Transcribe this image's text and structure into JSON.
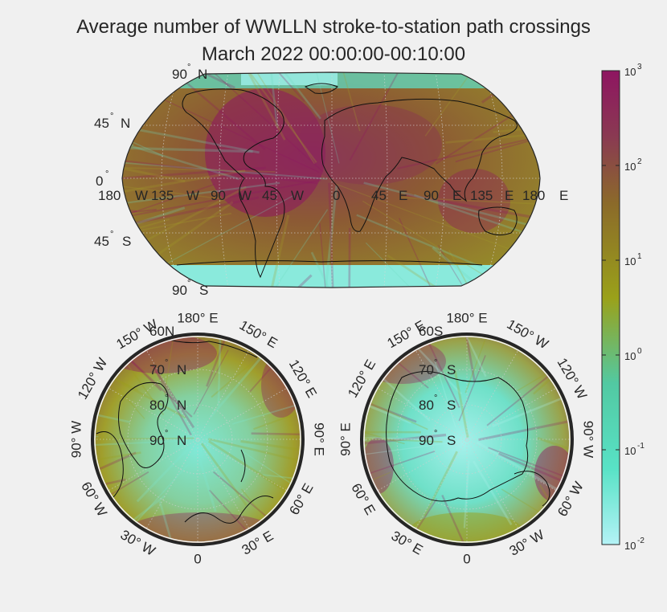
{
  "title": {
    "line1": "Average number of WWLLN stroke-to-station path crossings",
    "line2": "March 2022 00:00:00-00:10:00"
  },
  "colors": {
    "background": "#f0f0f0",
    "low": "#a8f2ee",
    "mid": "#9aa11a",
    "mid2": "#8b6a2a",
    "high": "#8e1561",
    "coast": "#111111",
    "rim": "#262626"
  },
  "world_map": {
    "projection": "robinson",
    "lat_labels": [
      {
        "deg": "90",
        "dir": "N"
      },
      {
        "deg": "45",
        "dir": "N"
      },
      {
        "deg": "0",
        "dir": ""
      },
      {
        "deg": "45",
        "dir": "S"
      },
      {
        "deg": "90",
        "dir": "S"
      }
    ],
    "lon_labels": [
      {
        "deg": "180",
        "dir": "W"
      },
      {
        "deg": "135",
        "dir": "W"
      },
      {
        "deg": "90",
        "dir": "W"
      },
      {
        "deg": "45",
        "dir": "W"
      },
      {
        "deg": "0",
        "dir": ""
      },
      {
        "deg": "45",
        "dir": "E"
      },
      {
        "deg": "90",
        "dir": "E"
      },
      {
        "deg": "135",
        "dir": "E"
      },
      {
        "deg": "180",
        "dir": "E"
      }
    ]
  },
  "north_polar": {
    "pole": "north",
    "lat_rings": [
      {
        "deg": "60",
        "dir": "N"
      },
      {
        "deg": "70",
        "dir": "N"
      },
      {
        "deg": "80",
        "dir": "N"
      },
      {
        "deg": "90",
        "dir": "N"
      }
    ],
    "rim_labels": [
      {
        "deg": "180",
        "dir": "E"
      },
      {
        "deg": "150",
        "dir": "E"
      },
      {
        "deg": "120",
        "dir": "E"
      },
      {
        "deg": "90",
        "dir": "E"
      },
      {
        "deg": "60",
        "dir": "E"
      },
      {
        "deg": "30",
        "dir": "E"
      },
      {
        "deg": "0",
        "dir": ""
      },
      {
        "deg": "30",
        "dir": "W"
      },
      {
        "deg": "60",
        "dir": "W"
      },
      {
        "deg": "90",
        "dir": "W"
      },
      {
        "deg": "120",
        "dir": "W"
      },
      {
        "deg": "150",
        "dir": "W"
      }
    ]
  },
  "south_polar": {
    "pole": "south",
    "lat_rings": [
      {
        "deg": "60",
        "dir": "S"
      },
      {
        "deg": "70",
        "dir": "S"
      },
      {
        "deg": "80",
        "dir": "S"
      },
      {
        "deg": "90",
        "dir": "S"
      }
    ],
    "rim_labels": [
      {
        "deg": "180",
        "dir": "E"
      },
      {
        "deg": "150",
        "dir": "W"
      },
      {
        "deg": "120",
        "dir": "W"
      },
      {
        "deg": "90",
        "dir": "W"
      },
      {
        "deg": "60",
        "dir": "W"
      },
      {
        "deg": "30",
        "dir": "W"
      },
      {
        "deg": "0",
        "dir": ""
      },
      {
        "deg": "30",
        "dir": "E"
      },
      {
        "deg": "60",
        "dir": "E"
      },
      {
        "deg": "90",
        "dir": "E"
      },
      {
        "deg": "120",
        "dir": "E"
      },
      {
        "deg": "150",
        "dir": "E"
      }
    ]
  },
  "colorbar": {
    "scale": "log",
    "min_exponent": -2,
    "max_exponent": 3,
    "ticks": [
      {
        "base": "10",
        "exp": "3"
      },
      {
        "base": "10",
        "exp": "2"
      },
      {
        "base": "10",
        "exp": "1"
      },
      {
        "base": "10",
        "exp": "0"
      },
      {
        "base": "10",
        "exp": "-1"
      },
      {
        "base": "10",
        "exp": "-2"
      }
    ]
  }
}
